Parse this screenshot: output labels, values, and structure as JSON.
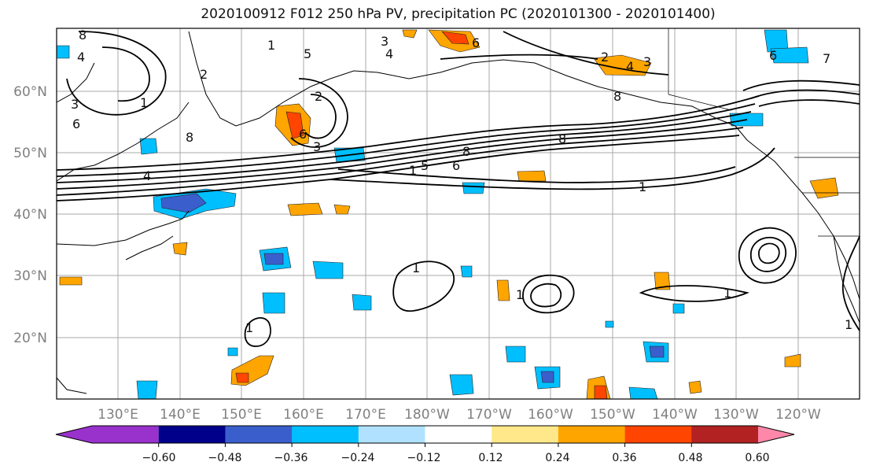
{
  "title": "2020100912 F012 250 hPa PV, precipitation PC (2020101300 - 2020101400)",
  "map": {
    "lat_labels": [
      "60°N",
      "50°N",
      "40°N",
      "30°N",
      "20°N"
    ],
    "lon_labels": [
      "130°E",
      "140°E",
      "150°E",
      "160°E",
      "170°E",
      "180°W",
      "170°W",
      "160°W",
      "150°W",
      "140°W",
      "130°W",
      "120°W"
    ]
  },
  "colorbar": {
    "ticks": [
      "−0.60",
      "−0.48",
      "−0.36",
      "−0.24",
      "−0.12",
      "0.12",
      "0.24",
      "0.36",
      "0.48",
      "0.60"
    ],
    "colors": [
      "#9932cc",
      "#00008b",
      "#3a5fcd",
      "#00bfff",
      "#b0e2ff",
      "#ffffff",
      "#ffe88a",
      "#ffa500",
      "#ff4500",
      "#b22222",
      "#ff88aa"
    ]
  }
}
